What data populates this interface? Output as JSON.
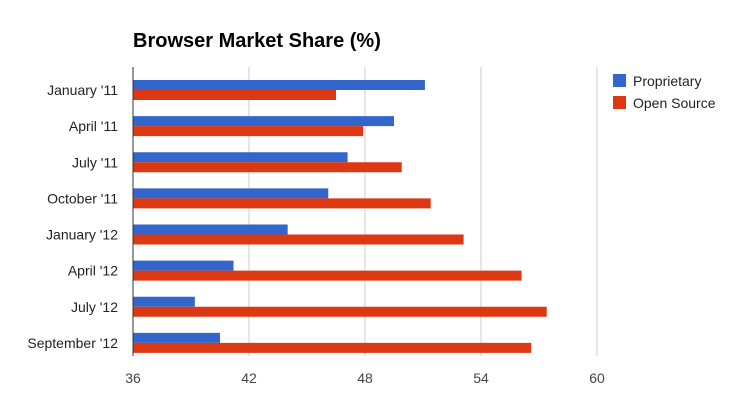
{
  "chart_data": {
    "type": "bar",
    "orientation": "horizontal",
    "title": "Browser Market Share (%)",
    "xlabel": "",
    "ylabel": "",
    "categories": [
      "January '11",
      "April '11",
      "July '11",
      "October '11",
      "January '12",
      "April '12",
      "July '12",
      "September '12"
    ],
    "series": [
      {
        "name": "Proprietary",
        "color": "#3366cc",
        "values": [
          51.1,
          49.5,
          47.1,
          46.1,
          44.0,
          41.2,
          39.2,
          40.5
        ]
      },
      {
        "name": "Open Source",
        "color": "#dc3912",
        "values": [
          46.5,
          47.9,
          49.9,
          51.4,
          53.1,
          56.1,
          57.4,
          56.6
        ]
      }
    ],
    "xlim": [
      36,
      60
    ],
    "ticks": [
      "36",
      "42",
      "48",
      "54",
      "60"
    ],
    "grid": true,
    "legend_position": "right"
  }
}
